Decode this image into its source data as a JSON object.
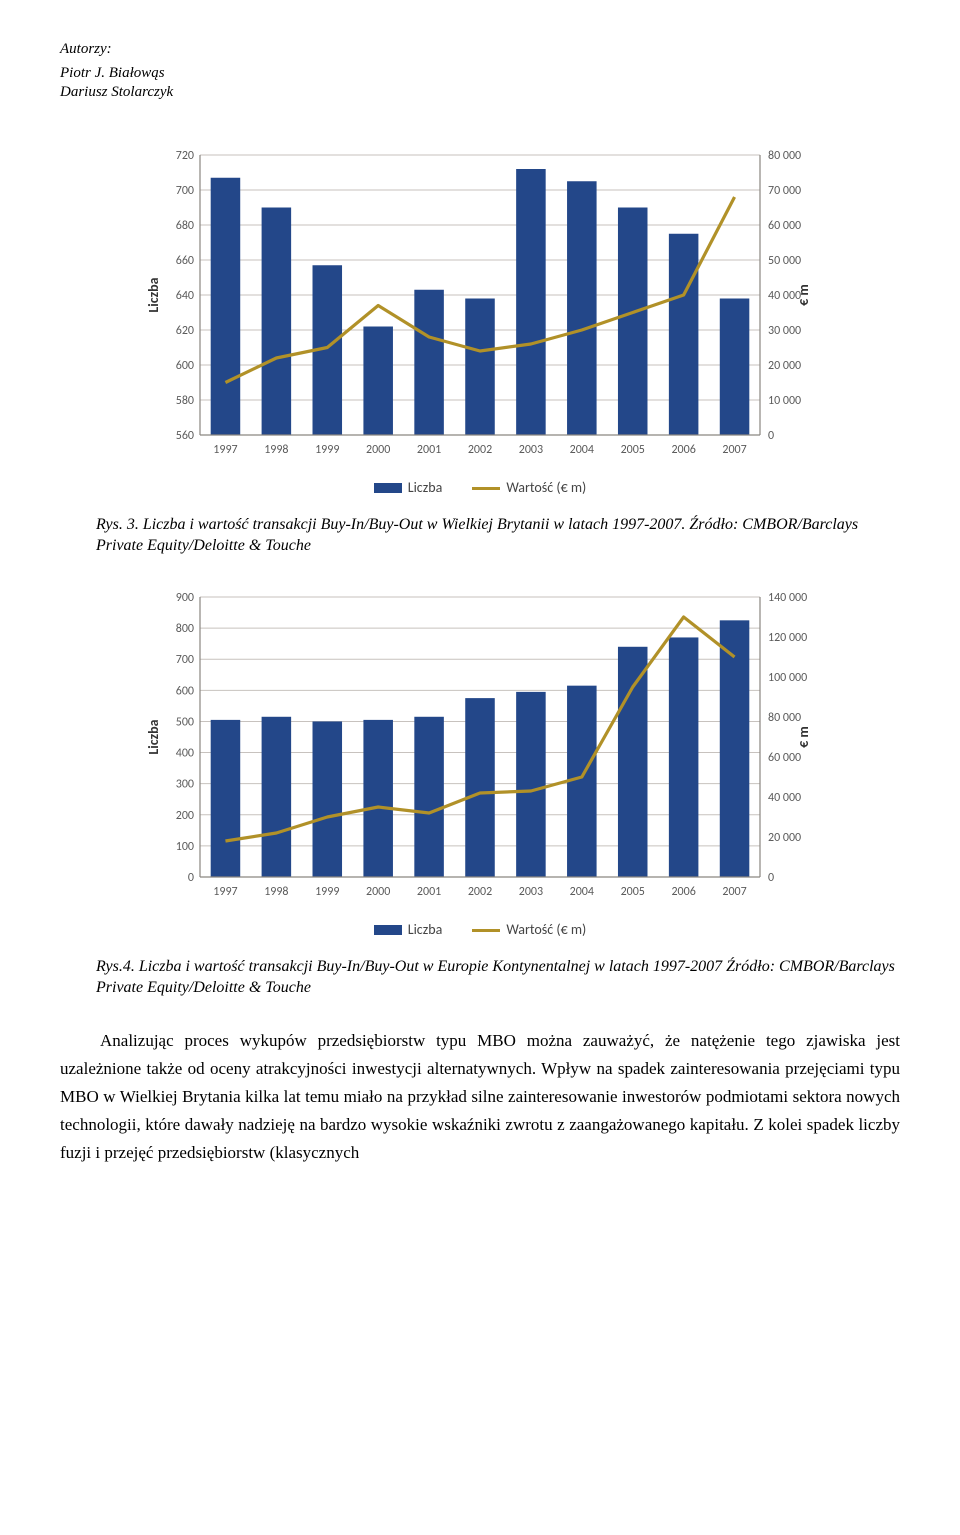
{
  "header": {
    "authors_label": "Autorzy:",
    "author1": "Piotr J. Białowąs",
    "author2": "Dariusz Stolarczyk"
  },
  "chart1": {
    "type": "bar+line",
    "years": [
      "1997",
      "1998",
      "1999",
      "2000",
      "2001",
      "2002",
      "2003",
      "2004",
      "2005",
      "2006",
      "2007"
    ],
    "bars": [
      707,
      690,
      657,
      622,
      643,
      638,
      712,
      705,
      690,
      675,
      638
    ],
    "line": [
      15000,
      22000,
      25000,
      37000,
      28000,
      24000,
      26000,
      30000,
      35000,
      40000,
      68000
    ],
    "y_left": {
      "min": 560,
      "max": 720,
      "ticks": [
        560,
        580,
        600,
        620,
        640,
        660,
        680,
        700,
        720
      ],
      "label": "Liczba"
    },
    "y_right": {
      "min": 0,
      "max": 80000,
      "ticks": [
        0,
        10000,
        20000,
        30000,
        40000,
        50000,
        60000,
        70000,
        80000
      ],
      "label": "€ m"
    },
    "bar_color": "#234789",
    "line_color": "#b19128",
    "grid_color": "#c7c2be",
    "tick_font": "12",
    "legend": {
      "bar": "Liczba",
      "line": "Wartość (€ m)"
    },
    "caption": "Rys. 3. Liczba i wartość transakcji Buy-In/Buy-Out w Wielkiej Brytanii w latach 1997-2007. Źródło: CMBOR/Barclays Private Equity/Deloitte & Touche"
  },
  "chart2": {
    "type": "bar+line",
    "years": [
      "1997",
      "1998",
      "1999",
      "2000",
      "2001",
      "2002",
      "2003",
      "2004",
      "2005",
      "2006",
      "2007"
    ],
    "bars": [
      505,
      515,
      500,
      505,
      515,
      575,
      595,
      615,
      740,
      770,
      825
    ],
    "line": [
      18000,
      22000,
      30000,
      35000,
      32000,
      42000,
      43000,
      50000,
      95000,
      130000,
      110000
    ],
    "y_left": {
      "min": 0,
      "max": 900,
      "ticks": [
        0,
        100,
        200,
        300,
        400,
        500,
        600,
        700,
        800,
        900
      ],
      "label": "Liczba"
    },
    "y_right": {
      "min": 0,
      "max": 140000,
      "ticks": [
        0,
        20000,
        40000,
        60000,
        80000,
        100000,
        120000,
        140000
      ],
      "label": "€ m"
    },
    "bar_color": "#234789",
    "line_color": "#b19128",
    "grid_color": "#c7c2be",
    "tick_font": "12",
    "legend": {
      "bar": "Liczba",
      "line": "Wartość (€ m)"
    },
    "caption": "Rys.4. Liczba i wartość transakcji Buy-In/Buy-Out w Europie Kontynentalnej w latach 1997-2007 Źródło: CMBOR/Barclays Private Equity/Deloitte & Touche"
  },
  "body": {
    "para1": "Analizując proces wykupów przedsiębiorstw typu MBO można zauważyć, że natężenie tego zjawiska jest uzależnione także od oceny atrakcyjności inwestycji alternatywnych. Wpływ na spadek zainteresowania przejęciami typu MBO w Wielkiej Brytania kilka lat temu miało na przykład silne zainteresowanie inwestorów podmiotami sektora nowych technologii, które dawały nadzieję na bardzo wysokie wskaźniki zwrotu z zaangażowanego kapitału. Z kolei spadek liczby fuzji i przejęć przedsiębiorstw (klasycznych"
  }
}
